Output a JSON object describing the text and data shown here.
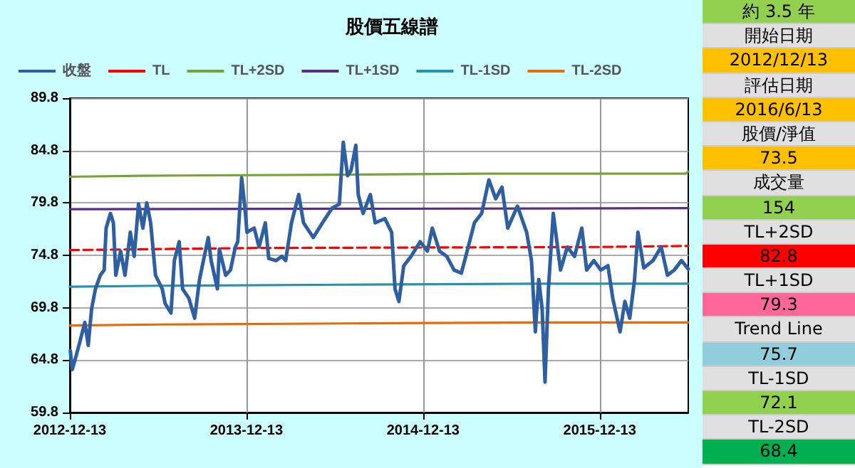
{
  "chart_data": {
    "type": "line",
    "title": "股價五線譜",
    "xlim": [
      "2012-12-13",
      "2016-06-13"
    ],
    "xticks": [
      "2012-12-13",
      "2013-12-13",
      "2014-12-13",
      "2015-12-13"
    ],
    "ylim": [
      59.8,
      89.8
    ],
    "yticks": [
      59.8,
      64.8,
      69.8,
      74.8,
      79.8,
      84.8,
      89.8
    ],
    "grid": true,
    "legend": "top",
    "marker": "none",
    "line_style": "solid",
    "series": [
      {
        "name": "收盤",
        "color": "#2e5fa0",
        "x": [
          "2012-12-14",
          "2012-12-18",
          "2012-12-26",
          "2013-01-03",
          "2013-01-13",
          "2013-01-20",
          "2013-01-27",
          "2013-02-04",
          "2013-02-14",
          "2013-02-22",
          "2013-02-26",
          "2013-03-07",
          "2013-03-13",
          "2013-03-18",
          "2013-03-28",
          "2013-04-06",
          "2013-04-17",
          "2013-04-25",
          "2013-05-04",
          "2013-05-13",
          "2013-05-21",
          "2013-05-29",
          "2013-06-08",
          "2013-06-22",
          "2013-06-28",
          "2013-07-10",
          "2013-07-17",
          "2013-07-27",
          "2013-08-03",
          "2013-08-16",
          "2013-08-28",
          "2013-09-07",
          "2013-09-25",
          "2013-10-01",
          "2013-10-14",
          "2013-10-18",
          "2013-10-31",
          "2013-11-10",
          "2013-11-20",
          "2013-11-25",
          "2013-12-03",
          "2013-12-10",
          "2013-12-14",
          "2013-12-29",
          "2014-01-08",
          "2014-01-21",
          "2014-01-28",
          "2014-02-12",
          "2014-02-24",
          "2014-03-04",
          "2014-03-16",
          "2014-03-31",
          "2014-04-10",
          "2014-04-30",
          "2014-05-19",
          "2014-06-08",
          "2014-06-23",
          "2014-07-01",
          "2014-07-10",
          "2014-07-17",
          "2014-07-27",
          "2014-08-01",
          "2014-08-11",
          "2014-08-26",
          "2014-09-05",
          "2014-09-25",
          "2014-10-09",
          "2014-10-16",
          "2014-10-24",
          "2014-11-03",
          "2014-11-18",
          "2014-12-07",
          "2014-12-22",
          "2015-01-01",
          "2015-01-16",
          "2015-01-31",
          "2015-02-15",
          "2015-03-02",
          "2015-03-14",
          "2015-03-29",
          "2015-04-13",
          "2015-04-28",
          "2015-05-12",
          "2015-05-25",
          "2015-06-06",
          "2015-06-26",
          "2015-07-15",
          "2015-07-25",
          "2015-08-02",
          "2015-08-09",
          "2015-08-16",
          "2015-08-22",
          "2015-08-29",
          "2015-09-08",
          "2015-09-23",
          "2015-10-07",
          "2015-10-22",
          "2015-11-06",
          "2015-11-16",
          "2015-12-01",
          "2015-12-15",
          "2015-12-30",
          "2016-01-09",
          "2016-01-24",
          "2016-02-03",
          "2016-02-13",
          "2016-02-23",
          "2016-03-01",
          "2016-03-13",
          "2016-04-01",
          "2016-04-18",
          "2016-05-01",
          "2016-05-15",
          "2016-05-30",
          "2016-06-13"
        ],
        "values": [
          65.7,
          63.9,
          65.2,
          66.6,
          68.4,
          66.2,
          69.7,
          71.6,
          72.9,
          73.4,
          77.4,
          78.8,
          77.9,
          72.9,
          75.2,
          72.9,
          77.0,
          74.7,
          79.7,
          77.4,
          79.8,
          77.9,
          72.9,
          71.6,
          70.2,
          69.3,
          74.3,
          76.1,
          71.6,
          70.7,
          68.8,
          72.5,
          76.5,
          74.3,
          71.6,
          75.4,
          72.9,
          73.4,
          75.6,
          76.1,
          82.2,
          79.3,
          77.0,
          77.4,
          75.6,
          77.9,
          74.5,
          74.3,
          74.7,
          74.3,
          77.9,
          80.6,
          77.9,
          76.5,
          77.9,
          79.3,
          79.7,
          85.6,
          82.4,
          82.9,
          85.3,
          80.6,
          78.8,
          80.6,
          77.9,
          78.3,
          77.0,
          71.6,
          70.4,
          73.8,
          74.7,
          76.1,
          75.2,
          77.4,
          75.2,
          74.7,
          73.4,
          73.1,
          75.2,
          77.9,
          78.8,
          82.0,
          80.2,
          81.3,
          77.4,
          79.5,
          77.0,
          74.3,
          67.5,
          72.5,
          69.7,
          62.7,
          71.6,
          78.8,
          73.4,
          75.6,
          74.7,
          77.4,
          73.4,
          74.3,
          73.4,
          73.8,
          70.7,
          67.5,
          70.4,
          68.8,
          72.5,
          77.0,
          73.6,
          74.3,
          75.6,
          72.9,
          73.4,
          74.3,
          73.5
        ]
      },
      {
        "name": "TL",
        "color": "#ff0000",
        "line_style": "dashed",
        "x": [
          "2012-12-13",
          "2014-01-01",
          "2015-12-20",
          "2016-06-13"
        ],
        "values": [
          75.3,
          75.5,
          75.6,
          75.7
        ]
      },
      {
        "name": "TL+2SD",
        "color": "#77a33a",
        "x": [
          "2012-12-13",
          "2013-05-10",
          "2014-07-01",
          "2015-04-20",
          "2016-06-08",
          "2016-06-13"
        ],
        "values": [
          82.3,
          82.4,
          82.5,
          82.6,
          82.6,
          82.8
        ]
      },
      {
        "name": "TL+1SD",
        "color": "#5b2c83",
        "x": [
          "2012-12-13",
          "2016-06-13"
        ],
        "values": [
          79.2,
          79.3
        ]
      },
      {
        "name": "TL-1SD",
        "color": "#2b8fb0",
        "x": [
          "2012-12-13",
          "2013-06-15",
          "2014-07-01",
          "2015-08-10",
          "2016-06-13"
        ],
        "values": [
          71.8,
          71.9,
          72.0,
          72.1,
          72.1
        ]
      },
      {
        "name": "TL-2SD",
        "color": "#e46c0a",
        "x": [
          "2012-12-13",
          "2013-06-15",
          "2014-07-01",
          "2015-08-10",
          "2016-06-13"
        ],
        "values": [
          68.1,
          68.2,
          68.3,
          68.4,
          68.4
        ]
      }
    ],
    "annotations": [
      "約 3.5 年",
      "開始日期",
      "2012/12/13",
      "評估日期",
      "2016/6/13",
      "股價/淨值",
      "73.5",
      "成交量",
      "154",
      "TL+2SD",
      "82.8",
      "TL+1SD",
      "79.3",
      "Trend Line",
      "75.7",
      "TL-1SD",
      "72.1",
      "TL-2SD",
      "68.4"
    ]
  }
}
